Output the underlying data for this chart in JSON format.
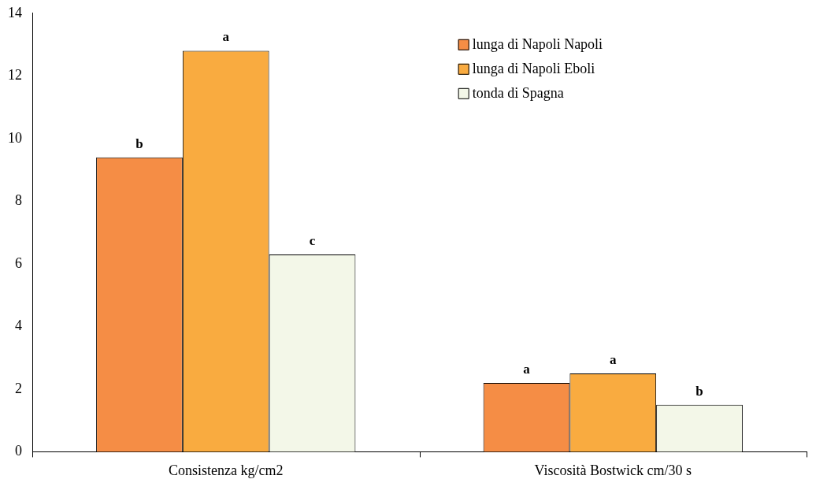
{
  "chart_data": {
    "type": "bar",
    "categories": [
      "Consistenza kg/cm2",
      "Viscosità Bostwick cm/30 s"
    ],
    "series": [
      {
        "name": "lunga di Napoli Napoli",
        "color": "#f58d45",
        "values": [
          9.4,
          2.2
        ],
        "value_labels": [
          "b",
          "a"
        ]
      },
      {
        "name": "lunga di Napoli Eboli",
        "color": "#f9ab40",
        "values": [
          12.8,
          2.5
        ],
        "value_labels": [
          "a",
          "a"
        ]
      },
      {
        "name": "tonda di Spagna",
        "color": "#f3f7e8",
        "values": [
          6.3,
          1.5
        ],
        "value_labels": [
          "c",
          "b"
        ]
      }
    ],
    "ylim": [
      0,
      14
    ],
    "yticks": [
      0,
      2,
      4,
      6,
      8,
      10,
      12,
      14
    ],
    "grid": false,
    "legend": "top right"
  }
}
